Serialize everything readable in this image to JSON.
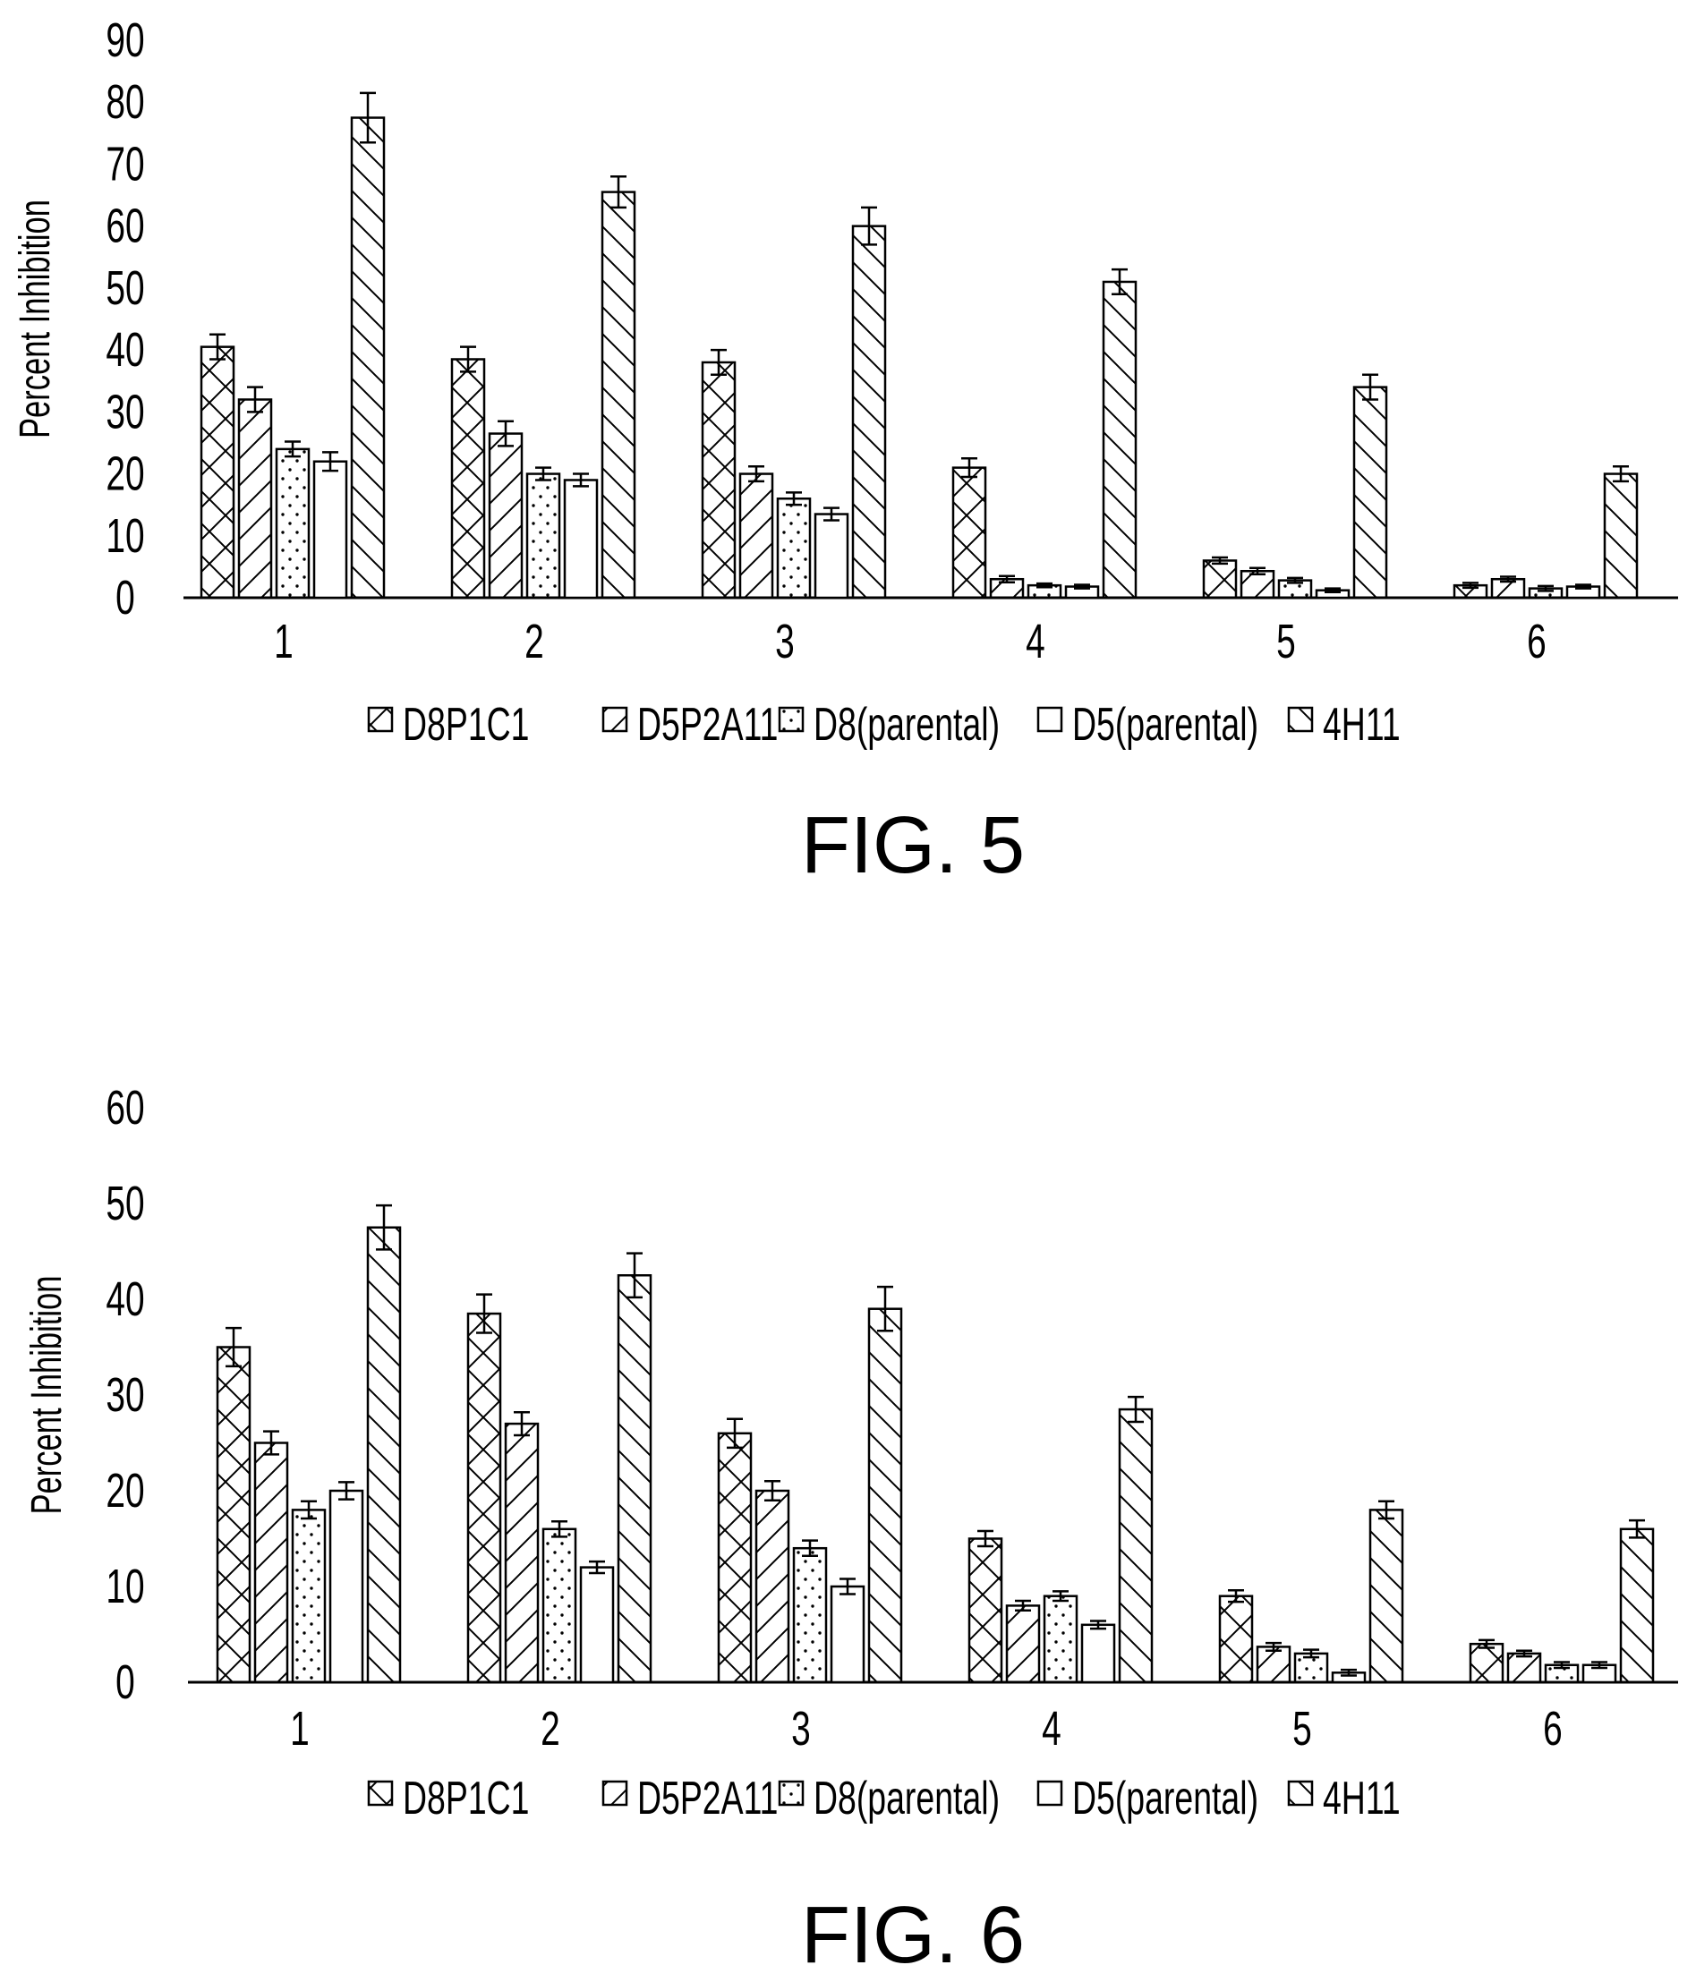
{
  "figures": [
    {
      "caption": "FIG. 5",
      "chart_data": {
        "type": "bar",
        "title": "",
        "xlabel": "",
        "ylabel": "Percent Inhibition",
        "ylim": [
          0,
          90
        ],
        "yticks": [
          0,
          10,
          20,
          30,
          40,
          50,
          60,
          70,
          80,
          90
        ],
        "categories": [
          "1",
          "2",
          "3",
          "4",
          "5",
          "6"
        ],
        "legend_position": "bottom",
        "error_bars": true,
        "series": [
          {
            "name": "D8P1C1",
            "pattern": "crosshatch",
            "values": [
              40.5,
              38.5,
              38,
              21,
              6,
              2
            ],
            "errors": [
              2,
              2,
              2,
              1.5,
              0.5,
              0.4
            ]
          },
          {
            "name": "D5P2A11",
            "pattern": "forward-diagonal",
            "values": [
              32,
              26.5,
              20,
              3,
              4.3,
              3
            ],
            "errors": [
              2,
              2,
              1.2,
              0.5,
              0.5,
              0.4
            ]
          },
          {
            "name": "D8(parental)",
            "pattern": "dots",
            "values": [
              24,
              20,
              16,
              2,
              2.8,
              1.5
            ],
            "errors": [
              1.2,
              1,
              1,
              0.3,
              0.4,
              0.4
            ]
          },
          {
            "name": "D5(parental)",
            "pattern": "empty",
            "values": [
              22,
              19,
              13.5,
              1.8,
              1.2,
              1.8
            ],
            "errors": [
              1.5,
              1,
              1,
              0.3,
              0.3,
              0.3
            ]
          },
          {
            "name": "4H11",
            "pattern": "back-diagonal",
            "values": [
              77.5,
              65.5,
              60,
              51,
              34,
              20
            ],
            "errors": [
              4,
              2.5,
              3,
              2,
              2,
              1.2
            ]
          }
        ]
      }
    },
    {
      "caption": "FIG. 6",
      "chart_data": {
        "type": "bar",
        "title": "",
        "xlabel": "",
        "ylabel": "Percent Inhibition",
        "ylim": [
          0,
          60
        ],
        "yticks": [
          0,
          10,
          20,
          30,
          40,
          50,
          60
        ],
        "categories": [
          "1",
          "2",
          "3",
          "4",
          "5",
          "6"
        ],
        "legend_position": "bottom",
        "error_bars": true,
        "series": [
          {
            "name": "D8P1C1",
            "pattern": "crosshatch",
            "values": [
              35,
              38.5,
              26,
              15,
              9,
              4
            ],
            "errors": [
              2,
              2,
              1.5,
              0.8,
              0.6,
              0.4
            ]
          },
          {
            "name": "D5P2A11",
            "pattern": "forward-diagonal",
            "values": [
              25,
              27,
              20,
              8,
              3.7,
              3
            ],
            "errors": [
              1.2,
              1.2,
              1,
              0.5,
              0.4,
              0.3
            ]
          },
          {
            "name": "D8(parental)",
            "pattern": "dots",
            "values": [
              18,
              16,
              14,
              9,
              3,
              1.8
            ],
            "errors": [
              0.9,
              0.8,
              0.8,
              0.5,
              0.4,
              0.3
            ]
          },
          {
            "name": "D5(parental)",
            "pattern": "empty",
            "values": [
              20,
              12,
              10,
              6,
              1,
              1.8
            ],
            "errors": [
              0.9,
              0.6,
              0.8,
              0.4,
              0.3,
              0.3
            ]
          },
          {
            "name": "4H11",
            "pattern": "back-diagonal",
            "values": [
              47.5,
              42.5,
              39,
              28.5,
              18,
              16
            ],
            "errors": [
              2.3,
              2.3,
              2.3,
              1.3,
              0.9,
              0.9
            ]
          }
        ]
      }
    }
  ]
}
